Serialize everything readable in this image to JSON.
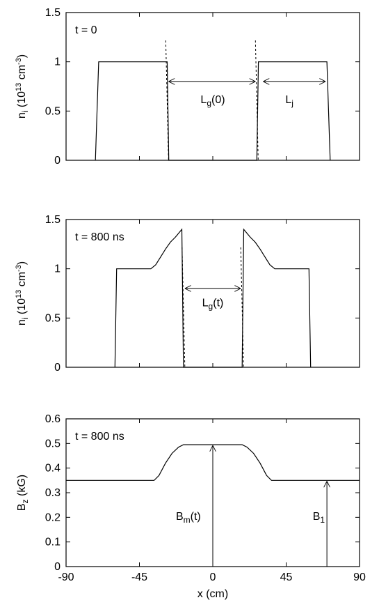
{
  "chart_data": [
    {
      "type": "line",
      "label": "t = 0",
      "ylabel_main": "n",
      "ylabel_sub": "i",
      "ylabel_unit": "(10",
      "ylabel_exp": "13",
      "ylabel_unit2": " cm",
      "ylabel_exp2": "-3",
      "ylabel_close": ")",
      "xlim": [
        -90,
        90
      ],
      "ylim": [
        0,
        1.5
      ],
      "yticks": [
        "0",
        "0.5",
        "1",
        "1.5"
      ],
      "series": [
        {
          "x": [
            -72,
            -70,
            -28,
            -27,
            27,
            28,
            70,
            72
          ],
          "y": [
            0,
            1.0,
            1.0,
            0,
            0,
            1.0,
            1.0,
            0
          ]
        }
      ],
      "dashed_x": [
        -28,
        27
      ],
      "annotations": [
        {
          "text": "L",
          "sub": "g",
          "rest": "(0)",
          "at": [
            0,
            0.58
          ]
        },
        {
          "text": "L",
          "sub": "j",
          "rest": "",
          "at": [
            47,
            0.58
          ]
        }
      ],
      "arrows": [
        {
          "x1": -28,
          "x2": 27,
          "y": 0.8
        },
        {
          "x1": 30,
          "x2": 70,
          "y": 0.8
        }
      ]
    },
    {
      "type": "line",
      "label": "t = 800 ns",
      "ylabel_main": "n",
      "ylabel_sub": "i",
      "ylabel_unit": "(10",
      "ylabel_exp": "13",
      "ylabel_unit2": " cm",
      "ylabel_exp2": "-3",
      "ylabel_close": ")",
      "xlim": [
        -90,
        90
      ],
      "ylim": [
        0,
        1.5
      ],
      "yticks": [
        "0",
        "0.5",
        "1",
        "1.5"
      ],
      "series": [
        {
          "x": [
            -60,
            -59,
            -50,
            -42,
            -38,
            -35,
            -32,
            -29,
            -26,
            -23,
            -21,
            -20,
            -19,
            -18,
            18,
            19,
            20,
            21,
            23,
            26,
            29,
            32,
            35,
            38,
            42,
            50,
            59,
            60
          ],
          "y": [
            0,
            1.0,
            1.0,
            1.0,
            1.0,
            1.04,
            1.12,
            1.2,
            1.27,
            1.32,
            1.36,
            1.38,
            1.4,
            0,
            0,
            1.4,
            1.38,
            1.36,
            1.32,
            1.27,
            1.2,
            1.12,
            1.04,
            1.0,
            1.0,
            1.0,
            1.0,
            0
          ]
        }
      ],
      "dashed_x": [
        -18,
        18
      ],
      "annotations": [
        {
          "text": "L",
          "sub": "g",
          "rest": "(t)",
          "at": [
            0,
            0.62
          ]
        }
      ],
      "arrows": [
        {
          "x1": -18,
          "x2": 18,
          "y": 0.8
        }
      ]
    },
    {
      "type": "line",
      "label": "t = 800 ns",
      "ylabel_main": "B",
      "ylabel_sub": "z",
      "ylabel_rest": " (kG)",
      "xlabel": "x (cm)",
      "xlim": [
        -90,
        90
      ],
      "ylim": [
        0,
        0.6
      ],
      "xticks": [
        "-90",
        "-45",
        "0",
        "45",
        "90"
      ],
      "yticks": [
        "0",
        "0.1",
        "0.2",
        "0.3",
        "0.4",
        "0.5",
        "0.6"
      ],
      "series": [
        {
          "x": [
            -90,
            -36,
            -33,
            -29,
            -25,
            -21,
            -18,
            18,
            21,
            25,
            29,
            33,
            36,
            90
          ],
          "y": [
            0.35,
            0.35,
            0.37,
            0.42,
            0.46,
            0.485,
            0.495,
            0.495,
            0.485,
            0.46,
            0.42,
            0.37,
            0.35,
            0.35
          ]
        }
      ],
      "annotations": [
        {
          "text": "B",
          "sub": "m",
          "rest": "(t)",
          "at": [
            -15,
            0.19
          ]
        },
        {
          "text": "B",
          "sub": "1",
          "rest": "",
          "at": [
            65,
            0.19
          ]
        }
      ],
      "vertical_arrows": [
        {
          "x": 0,
          "y_top": 0.495
        },
        {
          "x": 70,
          "y_top": 0.35
        }
      ]
    }
  ]
}
